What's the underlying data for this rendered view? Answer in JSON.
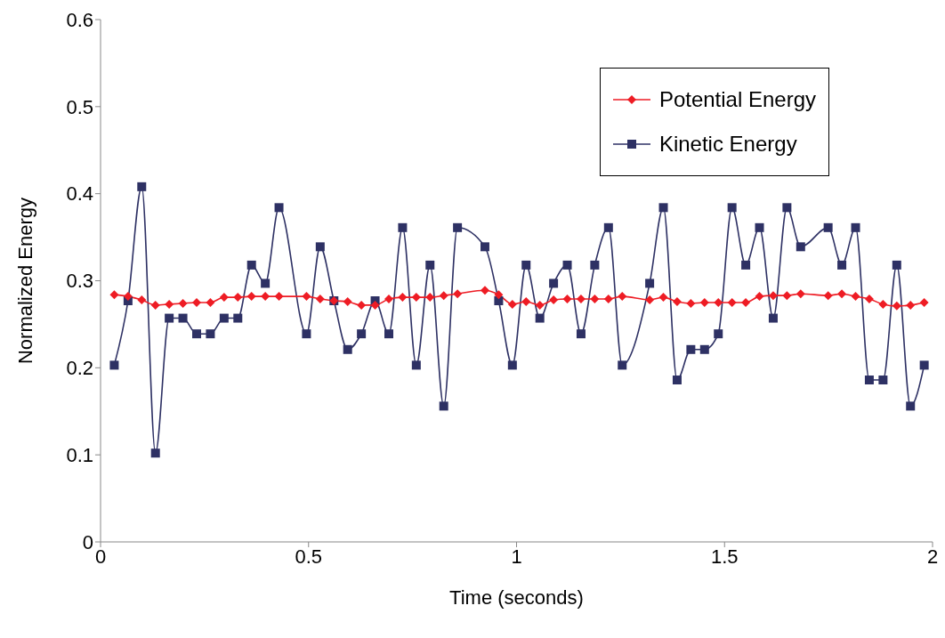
{
  "chart_data": {
    "type": "line",
    "xlabel": "Time (seconds)",
    "ylabel": "Normalized Energy",
    "x": [
      0.033,
      0.066,
      0.099,
      0.132,
      0.165,
      0.198,
      0.231,
      0.264,
      0.297,
      0.33,
      0.363,
      0.396,
      0.429,
      0.495,
      0.528,
      0.561,
      0.594,
      0.627,
      0.66,
      0.693,
      0.726,
      0.759,
      0.792,
      0.825,
      0.858,
      0.924,
      0.957,
      0.99,
      1.023,
      1.056,
      1.089,
      1.122,
      1.155,
      1.188,
      1.221,
      1.254,
      1.32,
      1.353,
      1.386,
      1.419,
      1.452,
      1.485,
      1.518,
      1.551,
      1.584,
      1.617,
      1.65,
      1.683,
      1.749,
      1.782,
      1.815,
      1.848,
      1.881,
      1.914,
      1.947,
      1.98
    ],
    "series": [
      {
        "name": "Potential Energy",
        "color": "#ee1c24",
        "marker": "diamond",
        "values": [
          0.284,
          0.282,
          0.278,
          0.272,
          0.273,
          0.274,
          0.275,
          0.275,
          0.281,
          0.281,
          0.282,
          0.282,
          0.282,
          0.282,
          0.279,
          0.277,
          0.276,
          0.272,
          0.272,
          0.279,
          0.281,
          0.281,
          0.281,
          0.283,
          0.285,
          0.289,
          0.284,
          0.273,
          0.276,
          0.272,
          0.278,
          0.279,
          0.279,
          0.279,
          0.279,
          0.282,
          0.278,
          0.281,
          0.276,
          0.274,
          0.275,
          0.275,
          0.275,
          0.275,
          0.282,
          0.283,
          0.283,
          0.285,
          0.283,
          0.285,
          0.282,
          0.279,
          0.273,
          0.271,
          0.272,
          0.275
        ]
      },
      {
        "name": "Kinetic Energy",
        "color": "#2e3164",
        "marker": "square",
        "values": [
          0.203,
          0.277,
          0.408,
          0.102,
          0.257,
          0.257,
          0.239,
          0.239,
          0.257,
          0.257,
          0.318,
          0.297,
          0.384,
          0.239,
          0.339,
          0.277,
          0.221,
          0.239,
          0.277,
          0.239,
          0.361,
          0.203,
          0.318,
          0.156,
          0.361,
          0.339,
          0.277,
          0.203,
          0.318,
          0.257,
          0.297,
          0.318,
          0.239,
          0.318,
          0.361,
          0.203,
          0.297,
          0.384,
          0.186,
          0.221,
          0.221,
          0.239,
          0.384,
          0.318,
          0.361,
          0.257,
          0.384,
          0.339,
          0.361,
          0.318,
          0.361,
          0.186,
          0.186,
          0.318,
          0.156,
          0.203
        ]
      }
    ],
    "xlim": [
      0,
      2
    ],
    "xticks": [
      0,
      0.5,
      1,
      1.5,
      2
    ],
    "ylim": [
      0,
      0.6
    ],
    "yticks": [
      0,
      0.1,
      0.2,
      0.3,
      0.4,
      0.5,
      0.6
    ],
    "grid": false,
    "legend": "top right"
  }
}
